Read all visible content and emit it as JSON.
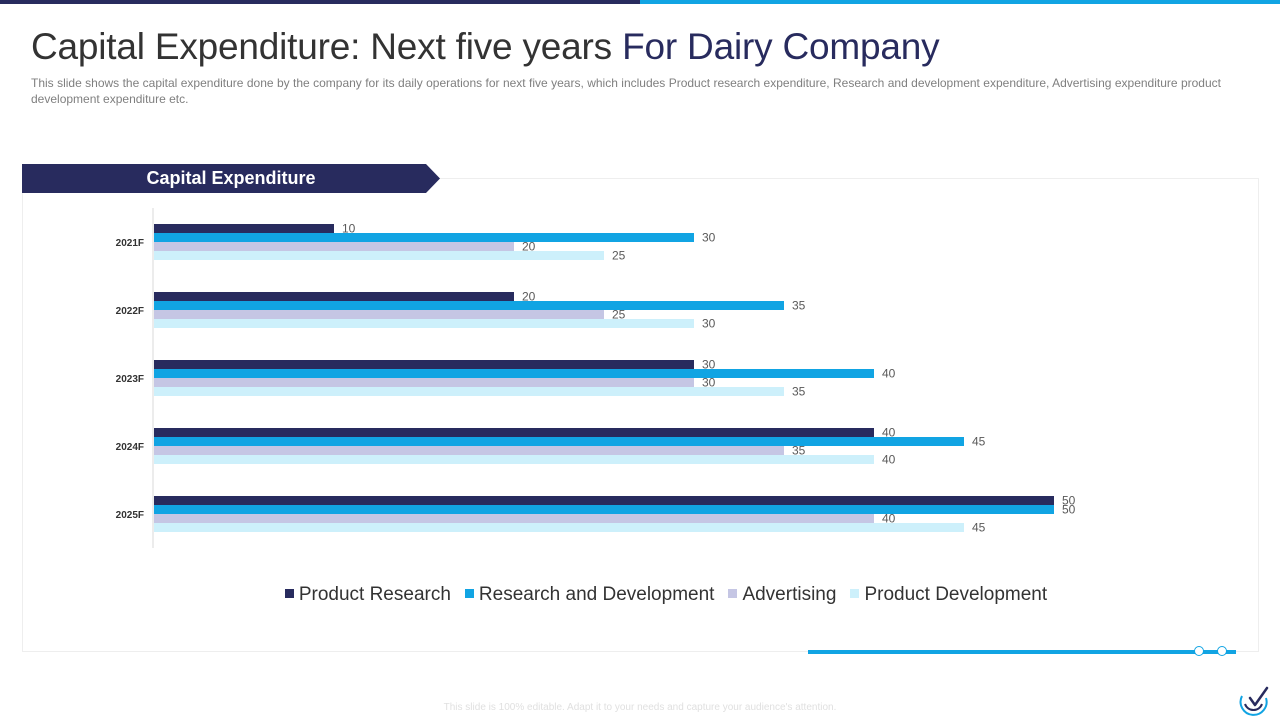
{
  "header": {
    "title_main": "Capital Expenditure: Next five years",
    "title_accent": "For Dairy Company",
    "subtitle": "This slide shows the capital expenditure done by the company for its daily operations for next five years, which includes Product research expenditure, Research and development  expenditure, Advertising expenditure product development  expenditure etc."
  },
  "banner": {
    "label": "Capital Expenditure"
  },
  "footer": {
    "text": "This slide is 100% editable. Adapt it to your needs and capture your audience's attention."
  },
  "colors": {
    "navy": "#282b5e",
    "blue": "#11a4e3",
    "lavender": "#c5c6e4",
    "light_blue": "#cdf0fb"
  },
  "chart_data": {
    "type": "bar",
    "orientation": "horizontal",
    "title": "Capital Expenditure",
    "categories": [
      "2021F",
      "2022F",
      "2023F",
      "2024F",
      "2025F"
    ],
    "series": [
      {
        "name": "Product Research",
        "color": "#282b5e",
        "values": [
          10,
          20,
          30,
          40,
          50
        ]
      },
      {
        "name": "Research and Development",
        "color": "#11a4e3",
        "values": [
          30,
          35,
          40,
          45,
          50
        ]
      },
      {
        "name": "Advertising",
        "color": "#c5c6e4",
        "values": [
          20,
          25,
          30,
          35,
          40
        ]
      },
      {
        "name": "Product Development",
        "color": "#cdf0fb",
        "values": [
          25,
          30,
          35,
          40,
          45
        ]
      }
    ],
    "xlim": [
      0,
      50
    ],
    "legend_position": "bottom",
    "grid": false
  }
}
